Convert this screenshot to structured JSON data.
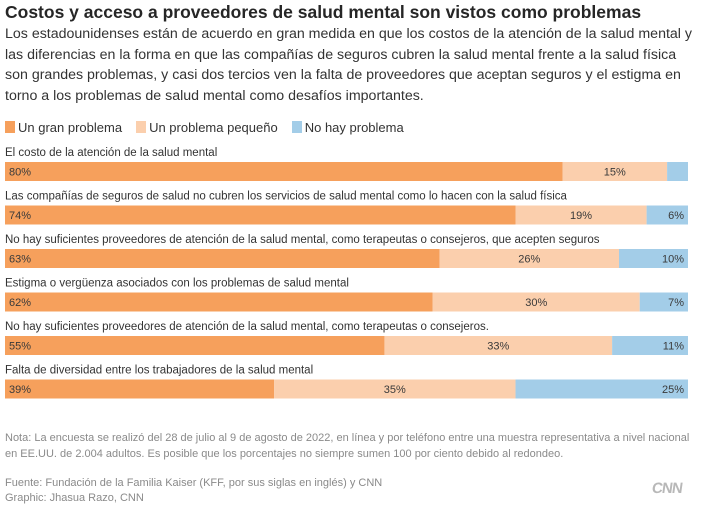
{
  "title": "Costos y acceso a proveedores de salud mental son vistos como problemas",
  "subtitle": "Los estadounidenses están de acuerdo en gran medida en que los costos de la atención de la salud mental y las diferencias en la forma en que las compañías de seguros cubren la salud mental frente a la salud física son grandes problemas, y casi dos tercios ven la falta de proveedores que aceptan seguros y el estigma en torno a los problemas de salud mental como desafíos importantes.",
  "legend": [
    {
      "label": "Un gran problema",
      "color": "#f6a05c"
    },
    {
      "label": "Un problema pequeño",
      "color": "#fbcfad"
    },
    {
      "label": "No hay problema",
      "color": "#a3cde8"
    }
  ],
  "chart_data": {
    "type": "bar",
    "orientation": "horizontal-stacked-100",
    "series_names": [
      "Un gran problema",
      "Un problema pequeño",
      "No hay problema"
    ],
    "colors": [
      "#f6a05c",
      "#fbcfad",
      "#a3cde8"
    ],
    "rows": [
      {
        "label": "El costo de la atención de la salud mental",
        "values": [
          80,
          15,
          3
        ],
        "labels": [
          "80%",
          "15%",
          ""
        ]
      },
      {
        "label": "Las compañías de seguros de salud no cubren los servicios de salud mental como lo hacen con la salud física",
        "values": [
          74,
          19,
          6
        ],
        "labels": [
          "74%",
          "19%",
          "6%"
        ]
      },
      {
        "label": "No hay suficientes proveedores de atención de la salud mental, como terapeutas o consejeros, que acepten seguros",
        "values": [
          63,
          26,
          10
        ],
        "labels": [
          "63%",
          "26%",
          "10%"
        ]
      },
      {
        "label": "Estigma o vergüenza asociados con los problemas de salud mental",
        "values": [
          62,
          30,
          7
        ],
        "labels": [
          "62%",
          "30%",
          "7%"
        ]
      },
      {
        "label": "No hay suficientes proveedores de atención de la salud mental, como terapeutas o consejeros.",
        "values": [
          55,
          33,
          11
        ],
        "labels": [
          "55%",
          "33%",
          "11%"
        ]
      },
      {
        "label": "Falta de diversidad entre los trabajadores de la salud mental",
        "values": [
          39,
          35,
          25
        ],
        "labels": [
          "39%",
          "35%",
          "25%"
        ]
      }
    ]
  },
  "note": "Nota: La encuesta se realizó del 28 de julio al 9 de agosto de 2022, en línea y por teléfono entre una muestra representativa a nivel nacional en EE.UU. de 2.004 adultos. Es posible que los porcentajes no siempre sumen 100 por ciento debido al redondeo.",
  "source": "Fuente: Fundación de la Familia Kaiser (KFF, por sus siglas en inglés) y CNN",
  "graphic": "Graphic: Jhasua Razo, CNN",
  "logo": "CNN"
}
